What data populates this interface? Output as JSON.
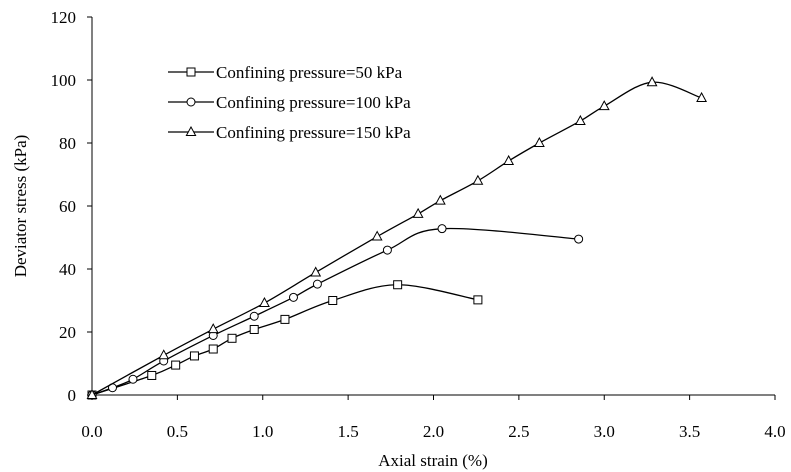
{
  "chart_data": {
    "type": "line",
    "title": "",
    "xlabel": "Axial strain (%)",
    "ylabel": "Deviator stress (kPa)",
    "xlim": [
      0.0,
      4.0
    ],
    "ylim": [
      0,
      120
    ],
    "x_ticks": [
      "0.0",
      "0.5",
      "1.0",
      "1.5",
      "2.0",
      "2.5",
      "3.0",
      "3.5",
      "4.0"
    ],
    "y_ticks": [
      "0",
      "20",
      "40",
      "60",
      "80",
      "100",
      "120"
    ],
    "grid": false,
    "legend_position": "top-left",
    "series": [
      {
        "name": "Confining pressure=50 kPa",
        "marker": "square",
        "points": [
          [
            0.0,
            0.0
          ],
          [
            0.35,
            6.2
          ],
          [
            0.49,
            9.5
          ],
          [
            0.6,
            12.4
          ],
          [
            0.71,
            14.6
          ],
          [
            0.82,
            18.0
          ],
          [
            0.95,
            20.8
          ],
          [
            1.13,
            24.0
          ],
          [
            1.41,
            30.0
          ],
          [
            1.79,
            35.0
          ],
          [
            2.26,
            30.2
          ]
        ]
      },
      {
        "name": "Confining pressure=100 kPa",
        "marker": "circle",
        "points": [
          [
            0.0,
            0.0
          ],
          [
            0.12,
            2.3
          ],
          [
            0.24,
            5.0
          ],
          [
            0.42,
            10.8
          ],
          [
            0.71,
            18.9
          ],
          [
            0.95,
            25.0
          ],
          [
            1.18,
            31.0
          ],
          [
            1.32,
            35.2
          ],
          [
            1.73,
            46.0
          ],
          [
            2.05,
            52.8
          ],
          [
            2.85,
            49.5
          ]
        ]
      },
      {
        "name": "Confining pressure=150 kPa",
        "marker": "triangle",
        "points": [
          [
            0.0,
            0.0
          ],
          [
            0.42,
            12.6
          ],
          [
            0.71,
            20.9
          ],
          [
            1.01,
            29.2
          ],
          [
            1.31,
            38.9
          ],
          [
            1.67,
            50.3
          ],
          [
            1.91,
            57.5
          ],
          [
            2.04,
            61.7
          ],
          [
            2.26,
            68.0
          ],
          [
            2.44,
            74.3
          ],
          [
            2.62,
            80.0
          ],
          [
            2.86,
            87.0
          ],
          [
            3.0,
            91.7
          ],
          [
            3.28,
            99.3
          ],
          [
            3.57,
            94.3
          ]
        ]
      }
    ]
  }
}
